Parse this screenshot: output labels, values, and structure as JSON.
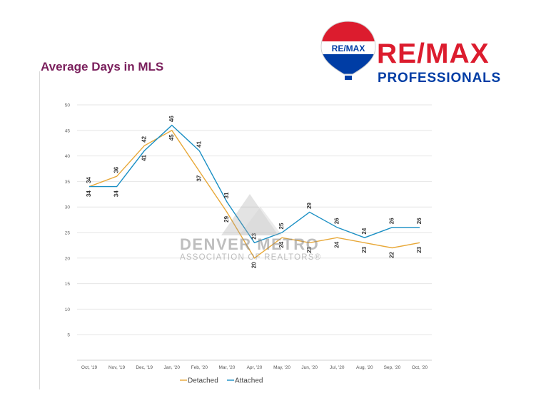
{
  "brand": {
    "balloon_text": "RE/MAX",
    "name": "RE/MAX",
    "subtitle": "PROFESSIONALS",
    "colors": {
      "red": "#dc1c2e",
      "blue": "#003da5"
    }
  },
  "watermark": {
    "line1": "DENVER METRO",
    "line2": "ASSOCIATION OF REALTORS®"
  },
  "chart_data": {
    "type": "line",
    "title": "Average Days in MLS",
    "xlabel": "",
    "ylabel": "",
    "categories": [
      "Oct, '19",
      "Nov, '19",
      "Dec, '19",
      "Jan, '20",
      "Feb, '20",
      "Mar, '20",
      "Apr, '20",
      "May, '20",
      "Jun, '20",
      "Jul, '20",
      "Aug, '20",
      "Sep, '20",
      "Oct, '20"
    ],
    "series": [
      {
        "name": "Detached",
        "color": "#e8a838",
        "values": [
          34,
          36,
          42,
          45,
          37,
          29,
          20,
          24,
          23,
          24,
          23,
          22,
          23
        ]
      },
      {
        "name": "Attached",
        "color": "#1a8fc4",
        "values": [
          34,
          34,
          41,
          46,
          41,
          31,
          23,
          25,
          29,
          26,
          24,
          26,
          26
        ]
      }
    ],
    "ylim": [
      0,
      50
    ],
    "yticks": [
      5,
      10,
      15,
      20,
      25,
      30,
      35,
      40,
      45,
      50
    ],
    "grid": true,
    "legend": "bottom"
  }
}
